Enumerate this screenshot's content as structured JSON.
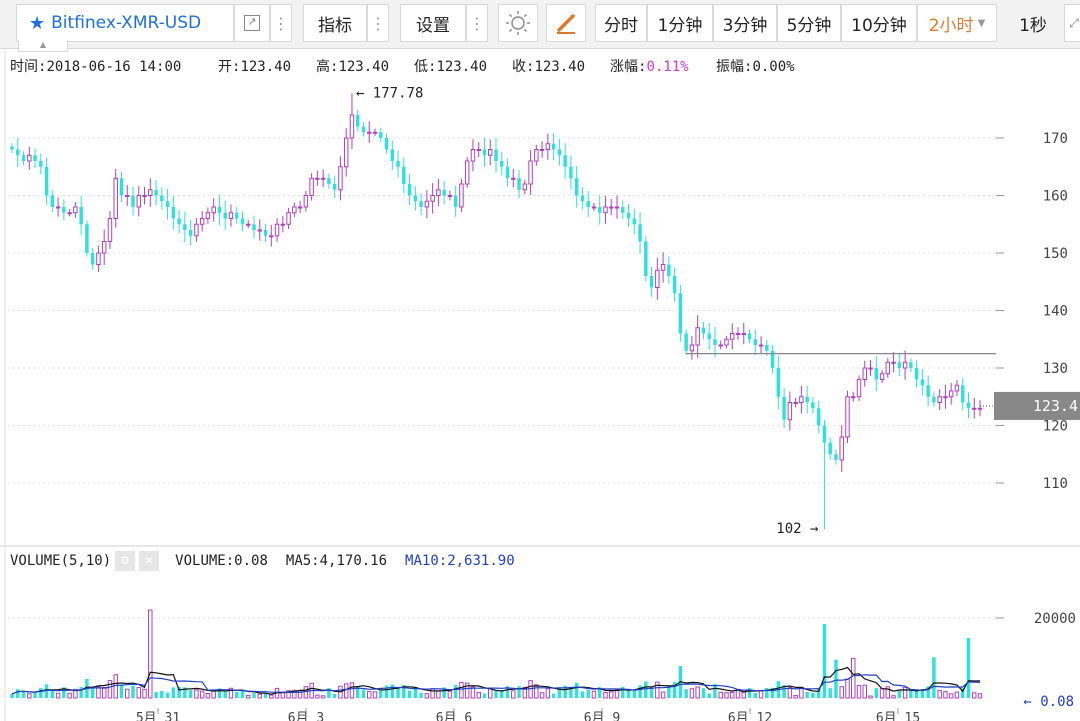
{
  "toolbar": {
    "symbol": "Bitfinex-XMR-USD",
    "indicator_label": "指标",
    "settings_label": "设置",
    "intervals": [
      "分时",
      "1分钟",
      "3分钟",
      "5分钟",
      "10分钟",
      "2小时",
      "1秒"
    ],
    "active_interval": "2小时",
    "accent_color": "#1e6fd9",
    "active_color": "#e07a2b"
  },
  "info": {
    "time_label": "时间:",
    "time": "2018-06-16 14:00",
    "open_label": "开:",
    "open": "123.40",
    "high_label": "高:",
    "high": "123.40",
    "low_label": "低:",
    "low": "123.40",
    "close_label": "收:",
    "close": "123.40",
    "change_label": "涨幅:",
    "change": "0.11%",
    "amp_label": "振幅:",
    "amp": "0.00%"
  },
  "volume_panel": {
    "title": "VOLUME(5,10)",
    "volume_label": "VOLUME:",
    "volume": "0.08",
    "ma5_label": "MA5:",
    "ma5": "4,170.16",
    "ma10_label": "MA10:",
    "ma10": "2,631.90",
    "last_marker": "← 0.08"
  },
  "chart_data": {
    "type": "candlestick",
    "price_axis": [
      110,
      120,
      130,
      140,
      150,
      160,
      170
    ],
    "price_range": [
      101,
      180
    ],
    "volume_axis": [
      20000
    ],
    "volume_range": [
      0,
      22500
    ],
    "x_tick_labels": [
      "5月 31",
      "6月 3",
      "6月 6",
      "6月 9",
      "6月 12",
      "6月 15"
    ],
    "high_annotation": "← 177.78",
    "high_value": 177.78,
    "low_annotation": "102 →",
    "low_value": 102,
    "current_price": "123.4",
    "current_value": 123.4,
    "resistance_level": 132.5,
    "up_color": "#b040c0",
    "down_color": "#2fe0dc",
    "close_series": [
      168,
      167,
      166,
      167,
      166,
      165,
      160,
      158,
      158,
      157,
      157,
      158,
      155,
      150,
      148,
      150,
      152,
      156,
      163,
      160,
      160,
      158,
      160,
      160,
      161,
      160,
      159,
      158,
      156,
      155,
      154,
      153,
      155,
      156,
      157,
      158,
      157,
      156,
      157,
      156,
      155,
      155,
      154,
      154,
      153,
      153,
      155,
      155,
      157,
      158,
      158,
      160,
      163,
      163,
      163,
      162,
      161,
      165,
      170,
      174,
      172,
      171,
      171,
      171,
      170,
      168,
      166,
      165,
      162,
      160,
      159,
      158,
      159,
      160,
      161,
      160,
      160,
      158,
      162,
      166,
      168,
      168,
      167,
      168,
      166,
      165,
      163,
      163,
      161,
      162,
      166,
      168,
      168,
      169,
      168,
      167,
      165,
      163,
      160,
      159,
      158,
      158,
      157,
      158,
      158,
      158,
      157,
      156,
      155,
      152,
      146,
      144,
      147,
      148,
      146,
      143,
      136,
      133,
      134,
      137,
      136,
      135,
      134,
      134,
      135,
      136,
      136,
      136,
      135,
      134,
      134,
      133,
      130,
      125,
      121,
      124,
      124,
      125,
      124,
      123,
      120,
      117,
      115,
      114,
      118,
      125,
      125,
      128,
      130,
      130,
      128,
      129,
      131,
      131,
      130,
      131,
      130,
      128,
      127,
      125,
      124,
      125,
      125,
      126,
      127,
      124,
      123,
      123,
      123
    ]
  }
}
